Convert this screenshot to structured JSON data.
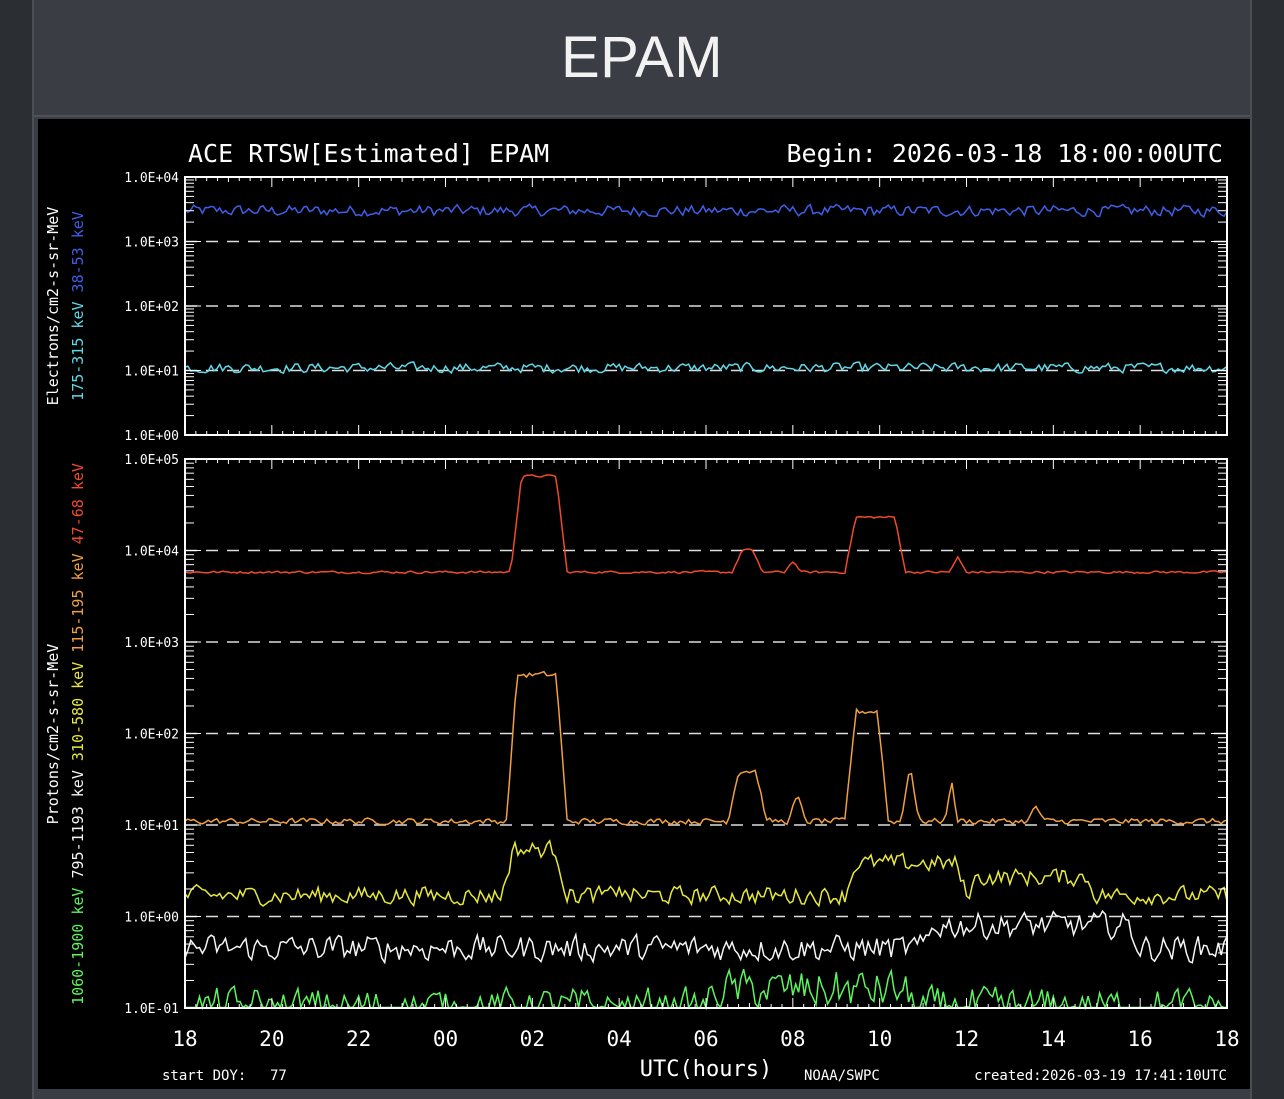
{
  "page": {
    "title": "EPAM"
  },
  "chart_data": {
    "type": "line",
    "title": "ACE RTSW[Estimated] EPAM",
    "begin_label": "Begin: 2026-03-18 18:00:00UTC",
    "xlabel": "UTC(hours)",
    "x_ticks": [
      "18",
      "20",
      "22",
      "00",
      "02",
      "04",
      "06",
      "08",
      "10",
      "12",
      "14",
      "16",
      "18"
    ],
    "start_doy_label": "start DOY:",
    "start_doy": "77",
    "source": "NOAA/SWPC",
    "created": "created:2026-03-19 17:41:10UTC",
    "grid_dashed": true,
    "panels": [
      {
        "id": "electrons",
        "ylabel": "Electrons/cm2-s-sr-MeV",
        "yscale": "log",
        "ylim": [
          1,
          10000
        ],
        "y_ticks": [
          "1.0E+00",
          "1.0E+01",
          "1.0E+02",
          "1.0E+03",
          "1.0E+04"
        ],
        "series": [
          {
            "name": "38-53 keV",
            "color": "#3f5fe8",
            "base": 3000,
            "noise": 0.08,
            "features": []
          },
          {
            "name": "175-315 keV",
            "color": "#5fd8e8",
            "base": 11,
            "noise": 0.07,
            "features": [
              [
                9.8,
                0.15,
                -0.35
              ]
            ]
          }
        ]
      },
      {
        "id": "protons",
        "ylabel": "Protons/cm2-s-sr-MeV",
        "yscale": "log",
        "ylim": [
          0.1,
          100000
        ],
        "y_ticks": [
          "1.0E-01",
          "1.0E+00",
          "1.0E+01",
          "1.0E+02",
          "1.0E+03",
          "1.0E+04",
          "1.0E+05"
        ],
        "series": [
          {
            "name": "47-68 keV",
            "color": "#ef4a2a",
            "base": 5800,
            "noise": 0.012,
            "features": [
              [
                7.5,
                8.8,
                1.05
              ],
              [
                12.6,
                13.3,
                0.25
              ],
              [
                13.8,
                14.2,
                0.15
              ],
              [
                15.2,
                16.6,
                0.6
              ],
              [
                17.6,
                18.0,
                0.2
              ]
            ]
          },
          {
            "name": "115-195 keV",
            "color": "#f0a040",
            "base": 11,
            "noise": 0.03,
            "features": [
              [
                7.4,
                8.8,
                1.6
              ],
              [
                12.5,
                13.4,
                0.55
              ],
              [
                13.9,
                14.3,
                0.35
              ],
              [
                15.2,
                16.2,
                1.2
              ],
              [
                16.5,
                16.9,
                0.8
              ],
              [
                17.5,
                17.8,
                0.75
              ],
              [
                19.4,
                19.8,
                0.2
              ]
            ]
          },
          {
            "name": "310-580 keV",
            "color": "#e8e83a",
            "base": 1.7,
            "noise": 0.09,
            "features": [
              [
                7.3,
                8.8,
                0.5
              ],
              [
                9.9,
                10.1,
                0.35
              ],
              [
                15.2,
                18.0,
                0.35
              ],
              [
                18.0,
                21.0,
                0.2
              ]
            ]
          },
          {
            "name": "795-1193 keV",
            "color": "#f5f5f5",
            "base": 0.45,
            "noise": 0.13,
            "features": [
              [
                17.0,
                22.0,
                0.25
              ]
            ]
          },
          {
            "name": "1060-1900 keV",
            "color": "#5cf55c",
            "base": 0.1,
            "noise": 0.2,
            "features": [
              [
                12.0,
                16.8,
                0.2
              ]
            ]
          }
        ]
      }
    ]
  }
}
